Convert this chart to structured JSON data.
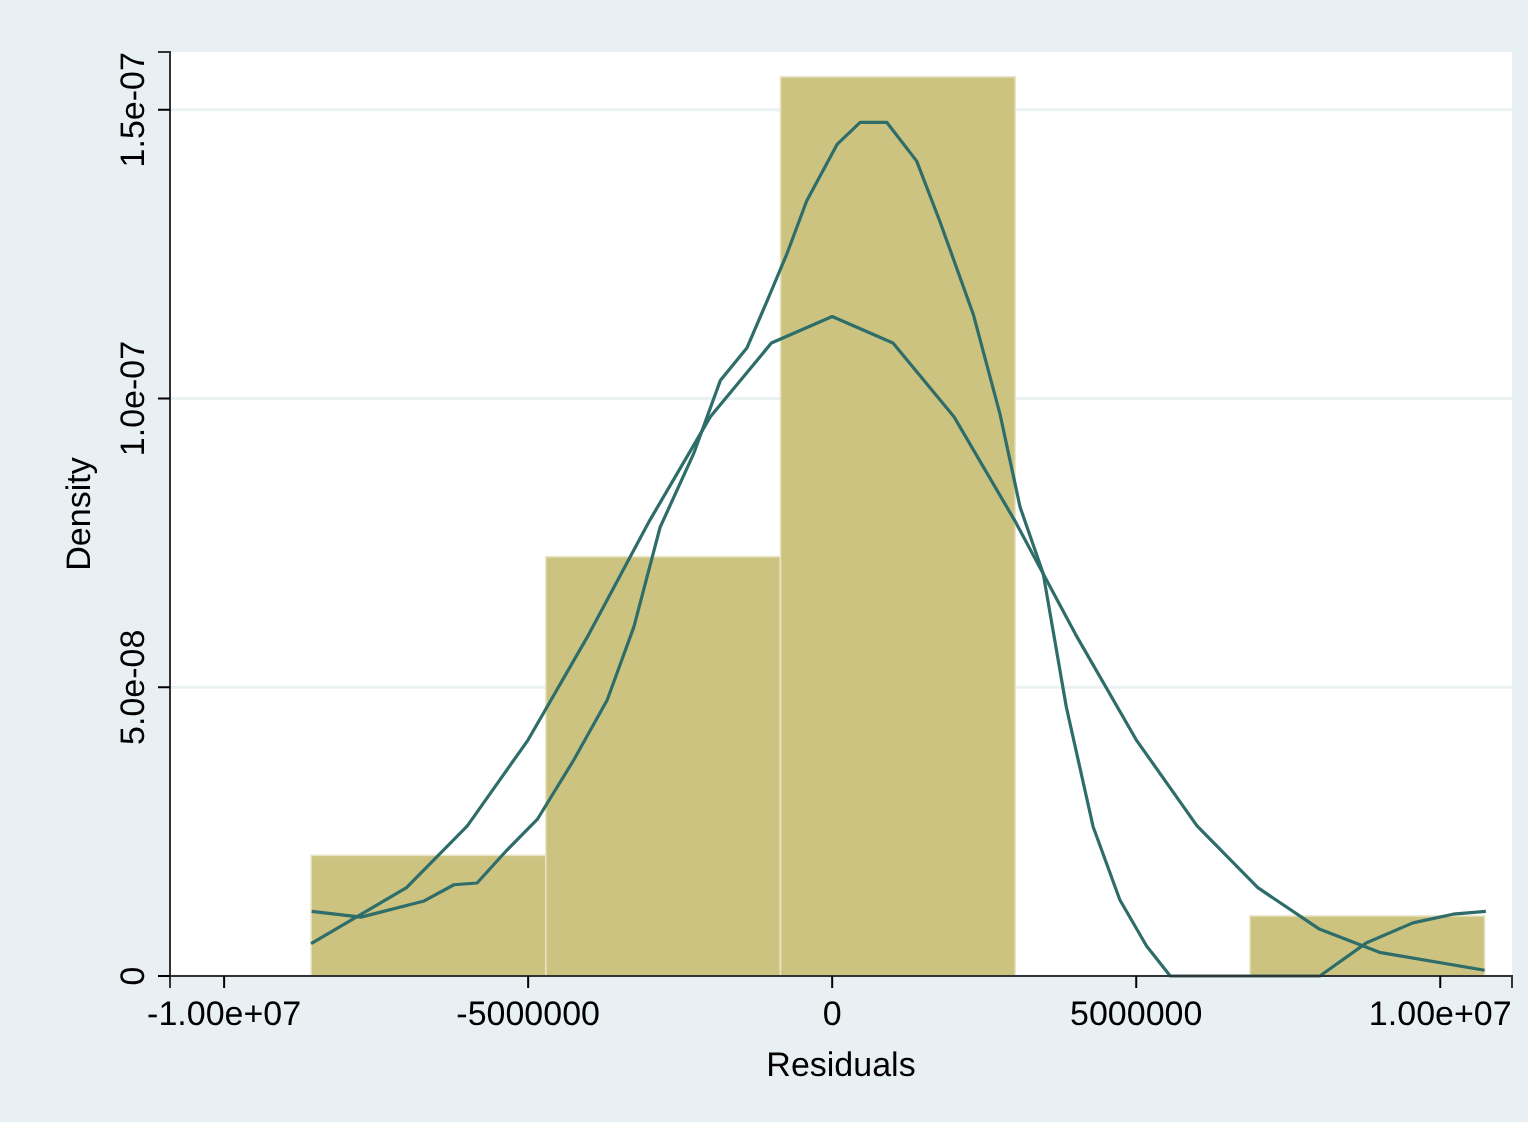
{
  "chart_data": {
    "type": "histogram",
    "xlabel": "Residuals",
    "ylabel": "Density",
    "color": "#cbc37f",
    "bins": [
      -8570000,
      -4710000,
      -850000,
      3010000,
      6870000,
      10730000
    ],
    "values": [
      2.09e-08,
      7.26e-08,
      1.557e-07,
      0,
      1.04e-08
    ],
    "series": [
      {
        "type": "line",
        "color": "#2e6d6a",
        "x": [
          -8570000,
          -7000000,
          -6000000,
          -5000000,
          -4000000,
          -3000000,
          -2000000,
          -1000000,
          0,
          1000000,
          2000000,
          3000000,
          4000000,
          5000000,
          6000000,
          7000000,
          8000000,
          9000000,
          10730000
        ],
        "values": [
          5.6e-09,
          1.53e-08,
          2.6e-08,
          4.09e-08,
          5.92e-08,
          7.89e-08,
          9.69e-08,
          1.096e-07,
          1.142e-07,
          1.096e-07,
          9.69e-08,
          7.89e-08,
          5.92e-08,
          4.09e-08,
          2.6e-08,
          1.53e-08,
          8.2e-09,
          4.1e-09,
          1e-09
        ]
      },
      {
        "type": "line",
        "color": "#2e6d6a",
        "x": [
          -8560000,
          -7750000,
          -6710000,
          -6220000,
          -5840000,
          -5340000,
          -4850000,
          -4250000,
          -3700000,
          -3260000,
          -2830000,
          -2280000,
          -1840000,
          -1400000,
          -1070000,
          -750000,
          -420000,
          80000,
          460000,
          900000,
          1390000,
          1770000,
          2320000,
          2760000,
          3090000,
          3470000,
          3850000,
          4290000,
          4730000,
          5170000,
          5560000,
          8020000,
          8780000,
          9550000,
          10210000,
          10750000
        ],
        "values": [
          1.12e-08,
          1.02e-08,
          1.3e-08,
          1.58e-08,
          1.61e-08,
          2.19e-08,
          2.71e-08,
          3.74e-08,
          4.78e-08,
          6.05e-08,
          7.77e-08,
          9.04e-08,
          1.031e-07,
          1.088e-07,
          1.169e-07,
          1.249e-07,
          1.342e-07,
          1.44e-07,
          1.478e-07,
          1.478e-07,
          1.411e-07,
          1.307e-07,
          1.146e-07,
          9.73e-08,
          8.12e-08,
          6.97e-08,
          4.66e-08,
          2.59e-08,
          1.32e-08,
          5.2e-09,
          0,
          0,
          5.7e-09,
          9.2e-09,
          1.07e-08,
          1.12e-08
        ]
      }
    ],
    "xlim": [
      -10890000,
      11180000
    ],
    "ylim": [
      0,
      1.6e-07
    ],
    "xticks": [
      {
        "value": -10000000,
        "label": "-1.00e+07"
      },
      -5000000,
      0,
      5000000,
      {
        "value": 10000000,
        "label": "1.00e+07"
      }
    ],
    "yticks": [
      0,
      {
        "value": 5e-08,
        "label": "5.0e-08"
      },
      {
        "value": 1e-07,
        "label": "1.0e-07"
      },
      {
        "value": 1.5e-07,
        "label": "1.5e-07"
      }
    ],
    "grid": "y"
  }
}
